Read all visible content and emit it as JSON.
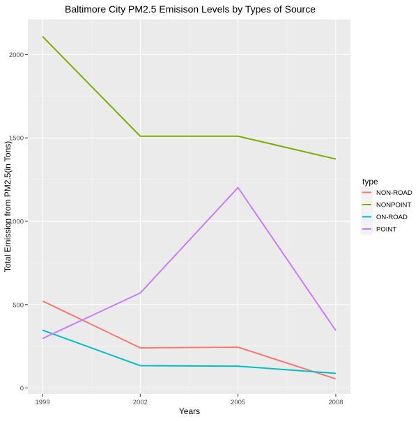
{
  "chart_data": {
    "type": "line",
    "title": "Baltimore City PM2.5 Emisison Levels by Types of Source",
    "xlabel": "Years",
    "ylabel": "Total Emission from PM2.5(in Tons)",
    "x": [
      1999,
      2002,
      2005,
      2008
    ],
    "x_ticks": [
      "1999",
      "2002",
      "2005",
      "2008"
    ],
    "y_ticks": [
      0,
      500,
      1000,
      1500,
      2000
    ],
    "ylim": [
      -35,
      2210
    ],
    "xlim": [
      1998.55,
      2008.45
    ],
    "grid": true,
    "legend": {
      "title": "type",
      "placement": "right"
    },
    "series": [
      {
        "name": "NON-ROAD",
        "color": "#F8766D",
        "values": [
          522,
          241,
          245,
          55
        ]
      },
      {
        "name": "NONPOINT",
        "color": "#7CAE00",
        "values": [
          2108,
          1510,
          1510,
          1373
        ]
      },
      {
        "name": "ON-ROAD",
        "color": "#00BFC4",
        "values": [
          347,
          134,
          131,
          88
        ]
      },
      {
        "name": "POINT",
        "color": "#C77CFF",
        "values": [
          297,
          570,
          1202,
          345
        ]
      }
    ]
  }
}
